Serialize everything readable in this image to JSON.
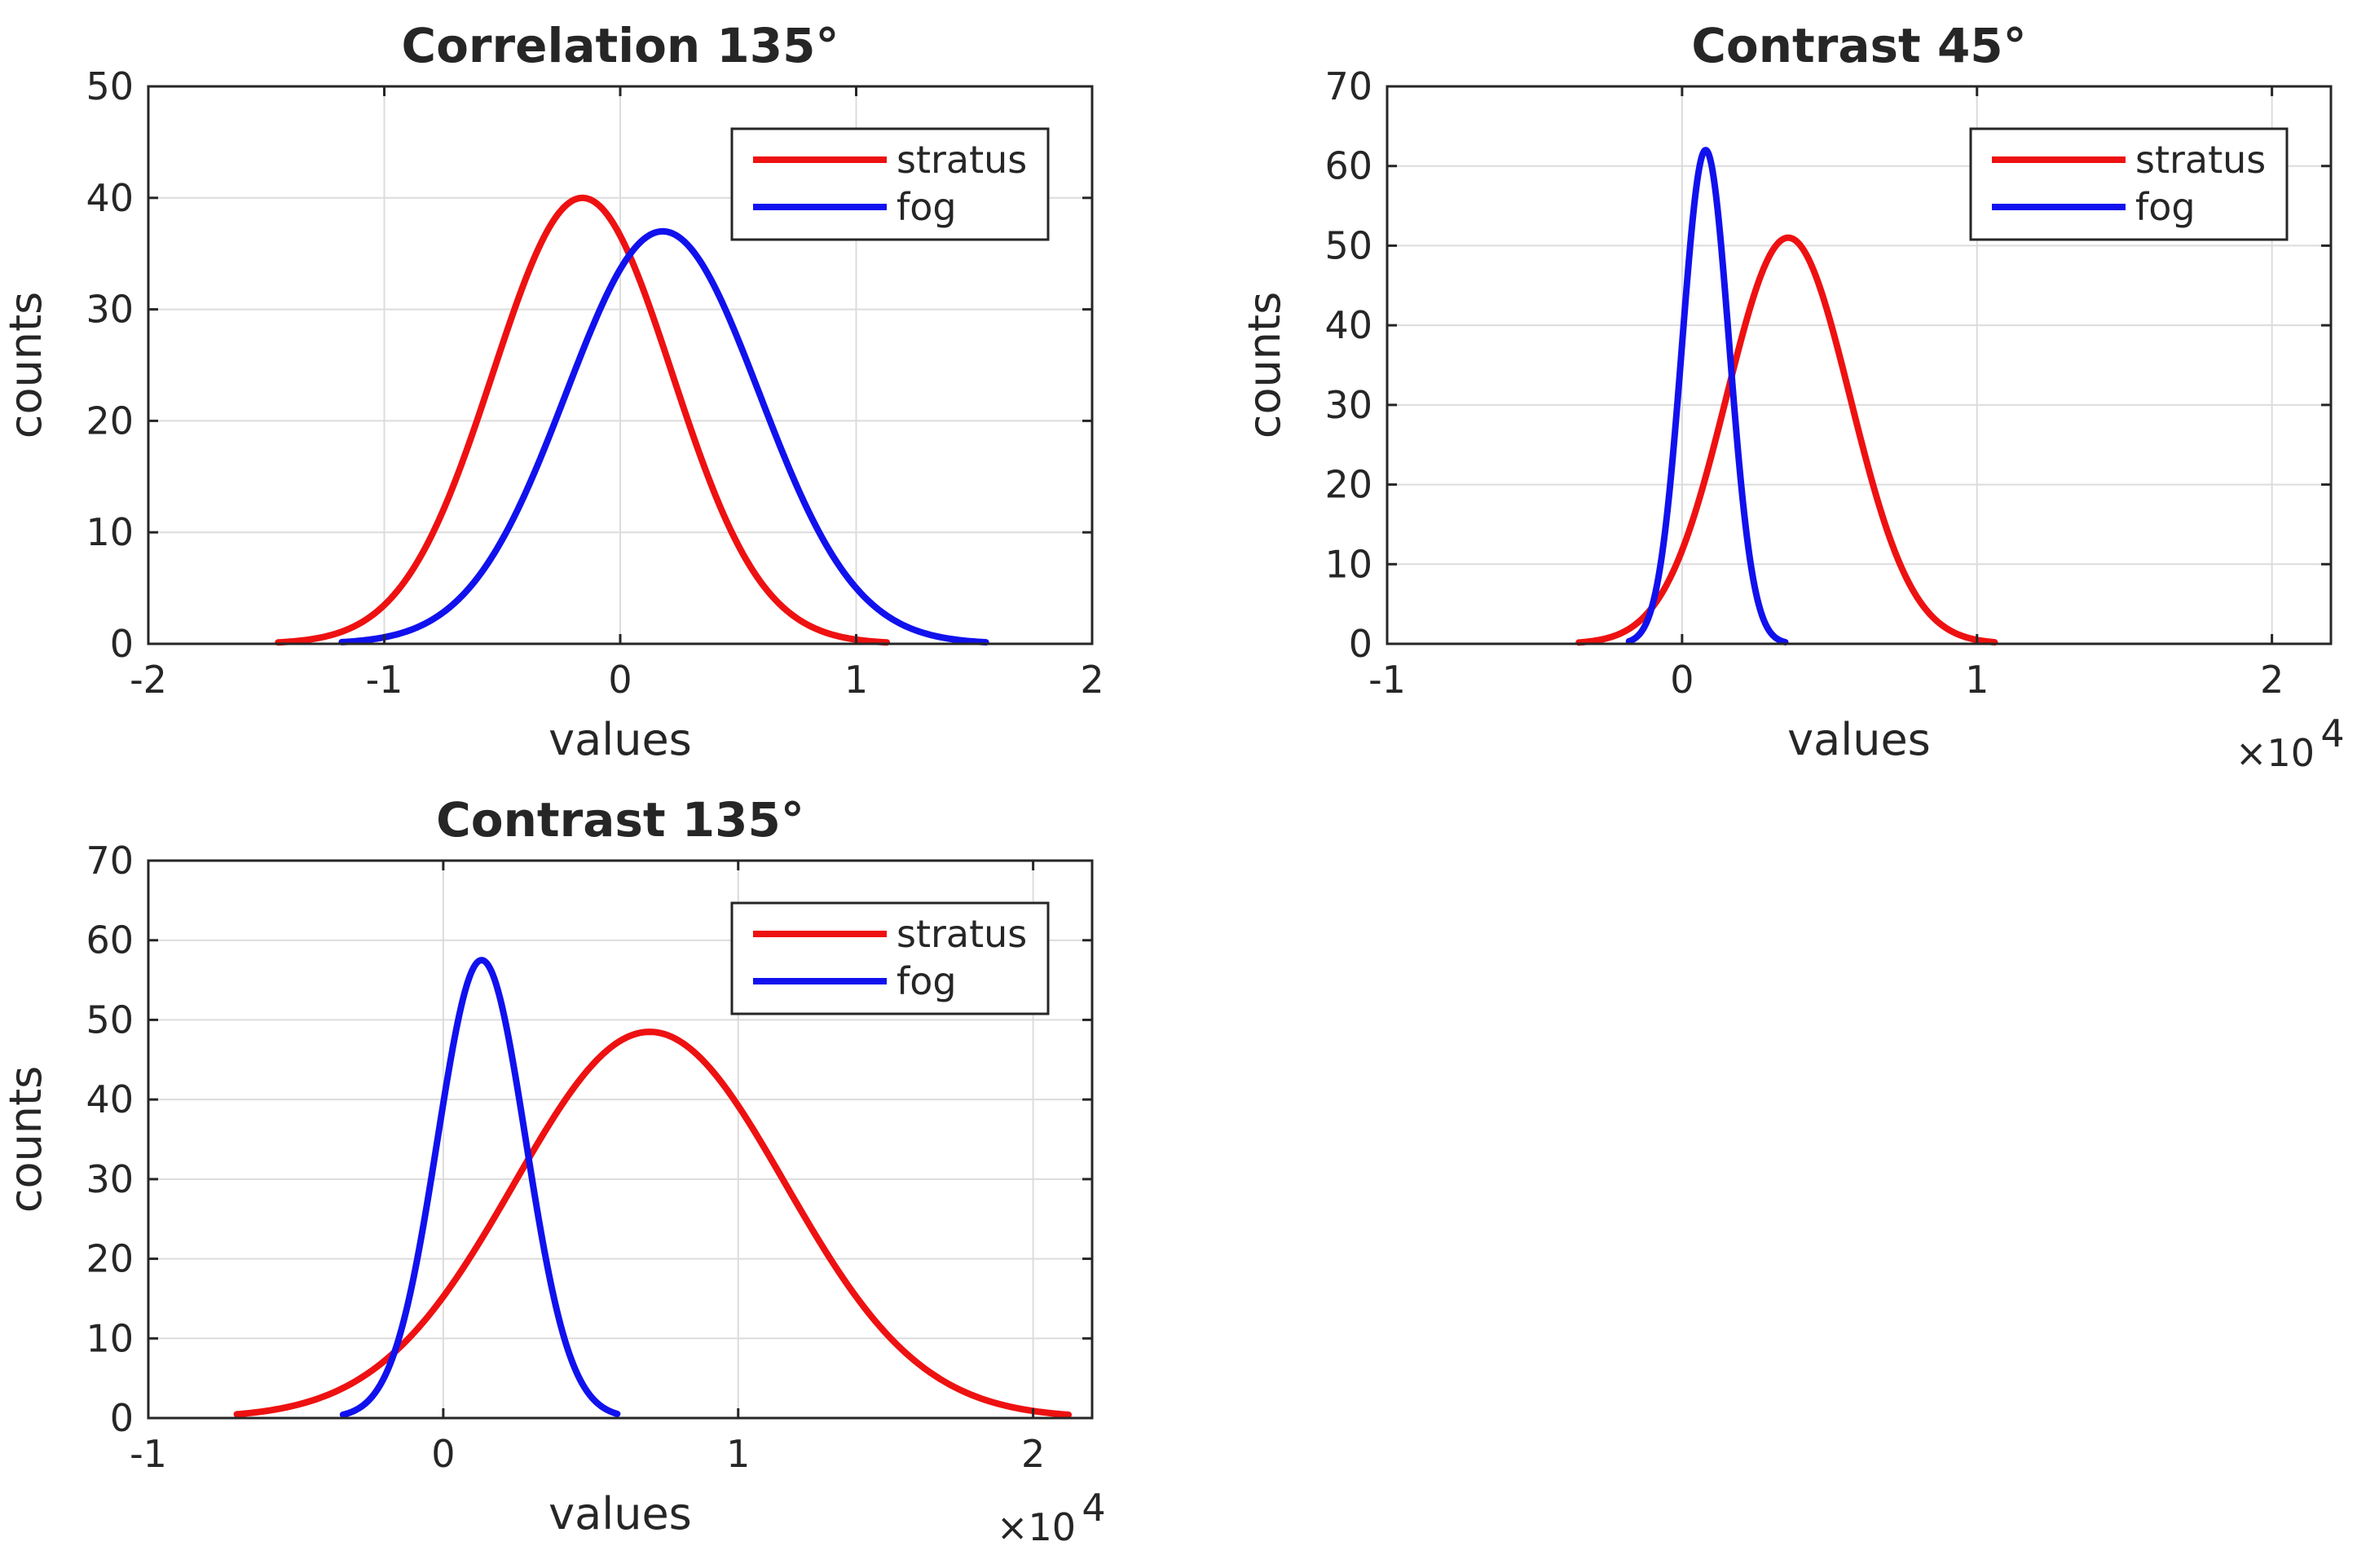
{
  "colors": {
    "stratus": "#ee1111",
    "fog": "#1111ee",
    "axis": "#262626",
    "grid": "#dcdcdc"
  },
  "chart_data": [
    {
      "type": "line",
      "title": "Correlation 135°",
      "xlabel": "values",
      "ylabel": "counts",
      "xlim": [
        -2,
        2
      ],
      "ylim": [
        0,
        50
      ],
      "xticks": [
        -2,
        -1,
        0,
        1,
        2
      ],
      "xtick_labels": [
        "-2",
        "-1",
        "0",
        "1",
        "2"
      ],
      "yticks": [
        0,
        10,
        20,
        30,
        40,
        50
      ],
      "ytick_labels": [
        "0",
        "10",
        "20",
        "30",
        "40",
        "50"
      ],
      "exponent_label": "",
      "grid": true,
      "legend_position": "top-right",
      "series": [
        {
          "name": "stratus",
          "color": "#ee1111",
          "mu": -0.16,
          "sigma": 0.38,
          "peak": 40,
          "x_range": [
            -1.45,
            1.13
          ]
        },
        {
          "name": "fog",
          "color": "#1111ee",
          "mu": 0.18,
          "sigma": 0.41,
          "peak": 37,
          "x_range": [
            -1.18,
            1.55
          ]
        }
      ]
    },
    {
      "type": "line",
      "title": "Contrast 45°",
      "xlabel": "values",
      "ylabel": "counts",
      "xlim": [
        -10000,
        22000
      ],
      "ylim": [
        0,
        70
      ],
      "xticks": [
        -10000,
        0,
        10000,
        20000
      ],
      "xtick_labels": [
        "-1",
        "0",
        "1",
        "2"
      ],
      "yticks": [
        0,
        10,
        20,
        30,
        40,
        50,
        60,
        70
      ],
      "ytick_labels": [
        "0",
        "10",
        "20",
        "30",
        "40",
        "50",
        "60",
        "70"
      ],
      "exponent_label": "×10",
      "exponent_power": "4",
      "grid": true,
      "legend_position": "top-right",
      "series": [
        {
          "name": "stratus",
          "color": "#ee1111",
          "mu": 3600,
          "sigma": 2100,
          "peak": 51,
          "x_range": [
            -3500,
            10600
          ]
        },
        {
          "name": "fog",
          "color": "#1111ee",
          "mu": 800,
          "sigma": 800,
          "peak": 62,
          "x_range": [
            -1800,
            3500
          ]
        }
      ]
    },
    {
      "type": "line",
      "title": "Contrast 135°",
      "xlabel": "values",
      "ylabel": "counts",
      "xlim": [
        -10000,
        22000
      ],
      "ylim": [
        0,
        70
      ],
      "xticks": [
        -10000,
        0,
        10000,
        20000
      ],
      "xtick_labels": [
        "-1",
        "0",
        "1",
        "2"
      ],
      "yticks": [
        0,
        10,
        20,
        30,
        40,
        50,
        60,
        70
      ],
      "ytick_labels": [
        "0",
        "10",
        "20",
        "30",
        "40",
        "50",
        "60",
        "70"
      ],
      "exponent_label": "×10",
      "exponent_power": "4",
      "grid": true,
      "legend_position": "top-right",
      "series": [
        {
          "name": "stratus",
          "color": "#ee1111",
          "mu": 7000,
          "sigma": 4600,
          "peak": 48.5,
          "x_range": [
            -7000,
            21200
          ]
        },
        {
          "name": "fog",
          "color": "#1111ee",
          "mu": 1300,
          "sigma": 1500,
          "peak": 57.5,
          "x_range": [
            -3400,
            5900
          ]
        }
      ]
    }
  ]
}
